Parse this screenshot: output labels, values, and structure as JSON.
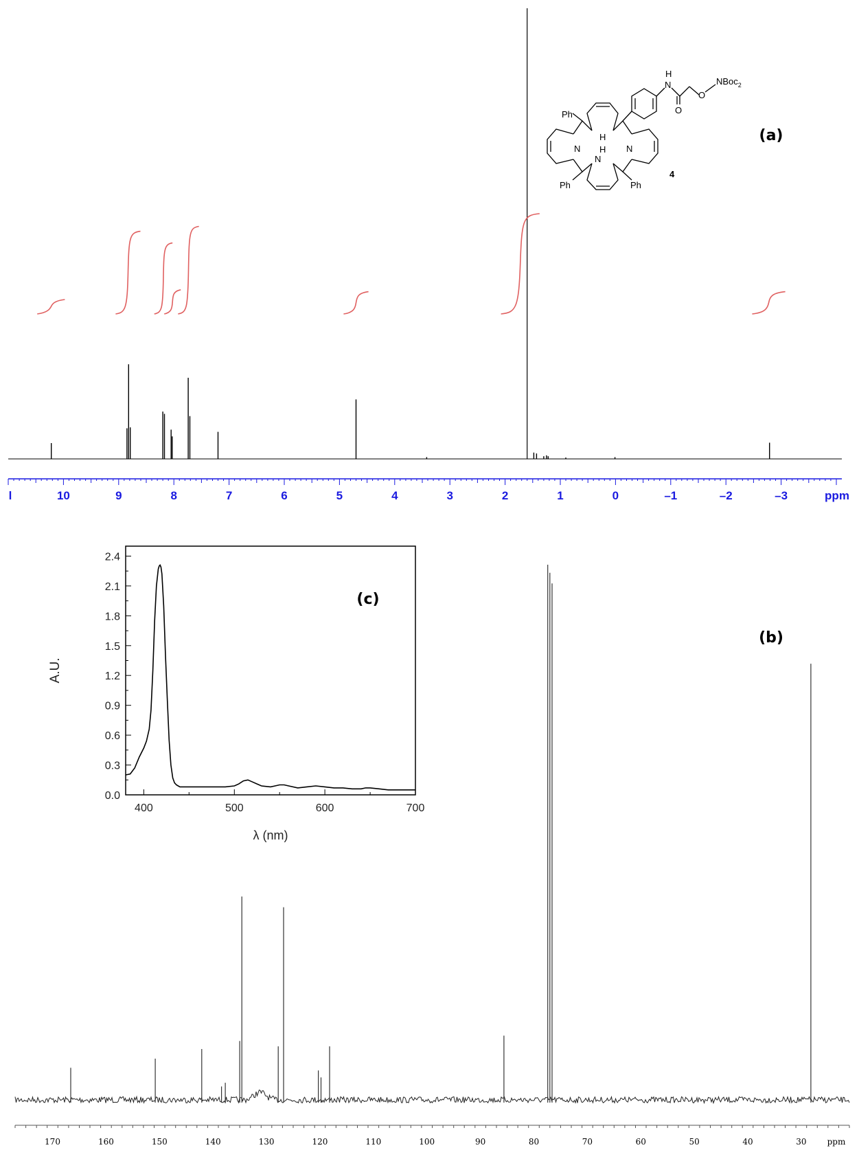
{
  "panels": {
    "a": "(a)",
    "b": "(b)",
    "c": "(c)"
  },
  "structure": {
    "compound_number": "4",
    "labels": {
      "ph1": "Ph",
      "ph2": "Ph",
      "ph3": "Ph",
      "nh_top": "H",
      "n_left": "N",
      "n_right": "N",
      "nh_bottom_h": "H",
      "nh_bottom_n": "N",
      "amide_h": "H",
      "amide_n": "N",
      "carbonyl_o": "O",
      "ether_o": "O",
      "nboc": "NBoc",
      "nboc_sub": "2"
    }
  },
  "chart_data": [
    {
      "id": "a",
      "type": "line",
      "title": "",
      "xlabel": "ppm",
      "xlim": [
        11.0,
        -4.1
      ],
      "x_reversed": true,
      "ticks": [
        10,
        9,
        8,
        7,
        6,
        5,
        4,
        3,
        2,
        1,
        0,
        -1,
        -2,
        -3
      ],
      "tick_labels": [
        "10",
        "9",
        "8",
        "7",
        "6",
        "5",
        "4",
        "3",
        "2",
        "1",
        "0",
        "–1",
        "–2",
        "–3"
      ],
      "edge_tick_label": "l",
      "color": "#000000",
      "peaks": [
        {
          "ppm": 10.22,
          "h": 0.035
        },
        {
          "ppm": 8.85,
          "h": 0.068
        },
        {
          "ppm": 8.82,
          "h": 0.21
        },
        {
          "ppm": 8.79,
          "h": 0.07
        },
        {
          "ppm": 8.2,
          "h": 0.105
        },
        {
          "ppm": 8.17,
          "h": 0.1
        },
        {
          "ppm": 8.05,
          "h": 0.065
        },
        {
          "ppm": 8.03,
          "h": 0.05
        },
        {
          "ppm": 7.74,
          "h": 0.18
        },
        {
          "ppm": 7.71,
          "h": 0.095
        },
        {
          "ppm": 7.2,
          "h": 0.06
        },
        {
          "ppm": 4.7,
          "h": 0.132
        },
        {
          "ppm": 3.42,
          "h": 0.004
        },
        {
          "ppm": 1.6,
          "h": 1.0
        },
        {
          "ppm": 1.48,
          "h": 0.014
        },
        {
          "ppm": 1.43,
          "h": 0.012
        },
        {
          "ppm": 1.3,
          "h": 0.006
        },
        {
          "ppm": 1.25,
          "h": 0.008
        },
        {
          "ppm": 1.22,
          "h": 0.006
        },
        {
          "ppm": 0.9,
          "h": 0.003
        },
        {
          "ppm": 0.01,
          "h": 0.004
        },
        {
          "ppm": -2.79,
          "h": 0.036
        }
      ],
      "integrals": {
        "color": "#e06060",
        "regions": [
          {
            "start": 10.4,
            "end": 10.05,
            "rise": 0.12
          },
          {
            "start": 8.98,
            "end": 8.68,
            "rise": 0.82
          },
          {
            "start": 8.28,
            "end": 8.1,
            "rise": 0.7
          },
          {
            "start": 8.1,
            "end": 7.95,
            "rise": 0.22
          },
          {
            "start": 7.85,
            "end": 7.62,
            "rise": 0.87
          },
          {
            "start": 4.85,
            "end": 4.55,
            "rise": 0.2
          },
          {
            "start": 2.0,
            "end": 1.45,
            "rise": 1.0
          },
          {
            "start": -2.55,
            "end": -3.0,
            "rise": 0.2
          }
        ]
      }
    },
    {
      "id": "b",
      "type": "line",
      "title": "",
      "xlabel": "ppm",
      "xlim": [
        177.0,
        21.0
      ],
      "x_reversed": true,
      "ticks": [
        170,
        160,
        150,
        140,
        130,
        120,
        110,
        100,
        90,
        80,
        70,
        60,
        50,
        40,
        30
      ],
      "tick_labels": [
        "170",
        "160",
        "150",
        "140",
        "130",
        "120",
        "110",
        "100",
        "90",
        "80",
        "70",
        "60",
        "50",
        "40",
        "30"
      ],
      "color": "#333333",
      "peaks": [
        {
          "ppm": 166.6,
          "h": 0.06
        },
        {
          "ppm": 150.8,
          "h": 0.077
        },
        {
          "ppm": 142.1,
          "h": 0.095
        },
        {
          "ppm": 138.4,
          "h": 0.025
        },
        {
          "ppm": 137.7,
          "h": 0.032
        },
        {
          "ppm": 135.0,
          "h": 0.11
        },
        {
          "ppm": 134.6,
          "h": 0.38
        },
        {
          "ppm": 127.8,
          "h": 0.1
        },
        {
          "ppm": 126.8,
          "h": 0.36
        },
        {
          "ppm": 120.3,
          "h": 0.055
        },
        {
          "ppm": 119.8,
          "h": 0.042
        },
        {
          "ppm": 118.2,
          "h": 0.1
        },
        {
          "ppm": 85.6,
          "h": 0.12
        },
        {
          "ppm": 77.4,
          "h": 1.0
        },
        {
          "ppm": 77.0,
          "h": 0.985
        },
        {
          "ppm": 76.6,
          "h": 0.965
        },
        {
          "ppm": 28.2,
          "h": 0.815
        }
      ],
      "broad_hump": {
        "ppm": 131.2,
        "h": 0.012
      }
    },
    {
      "id": "c",
      "type": "line",
      "title": "",
      "xlabel": "λ (nm)",
      "ylabel": "A.U.",
      "xlim": [
        380,
        700
      ],
      "ylim": [
        0.0,
        2.5
      ],
      "xticks": [
        400,
        500,
        600,
        700
      ],
      "yticks": [
        0.0,
        0.3,
        0.6,
        0.9,
        1.2,
        1.5,
        1.8,
        2.1,
        2.4
      ],
      "ytick_labels": [
        "0.0",
        "0.3",
        "0.6",
        "0.9",
        "1.2",
        "1.5",
        "1.8",
        "2.1",
        "2.4"
      ],
      "color": "#000000",
      "x": [
        380,
        385,
        390,
        395,
        400,
        403,
        406,
        408,
        410,
        412,
        414,
        416,
        417,
        418,
        419,
        420,
        422,
        424,
        426,
        428,
        430,
        432,
        434,
        436,
        438,
        440,
        445,
        450,
        460,
        470,
        480,
        490,
        500,
        505,
        510,
        515,
        520,
        525,
        530,
        540,
        545,
        550,
        555,
        560,
        570,
        580,
        590,
        600,
        610,
        620,
        630,
        640,
        645,
        650,
        660,
        670,
        680,
        690,
        700
      ],
      "y": [
        0.2,
        0.21,
        0.27,
        0.38,
        0.47,
        0.54,
        0.66,
        0.85,
        1.25,
        1.75,
        2.1,
        2.27,
        2.3,
        2.31,
        2.29,
        2.22,
        1.9,
        1.4,
        0.95,
        0.55,
        0.3,
        0.17,
        0.12,
        0.1,
        0.09,
        0.08,
        0.08,
        0.08,
        0.08,
        0.08,
        0.08,
        0.08,
        0.09,
        0.11,
        0.14,
        0.15,
        0.13,
        0.11,
        0.09,
        0.08,
        0.09,
        0.1,
        0.1,
        0.09,
        0.07,
        0.08,
        0.09,
        0.08,
        0.07,
        0.07,
        0.06,
        0.06,
        0.07,
        0.07,
        0.06,
        0.05,
        0.05,
        0.05,
        0.05
      ]
    }
  ]
}
